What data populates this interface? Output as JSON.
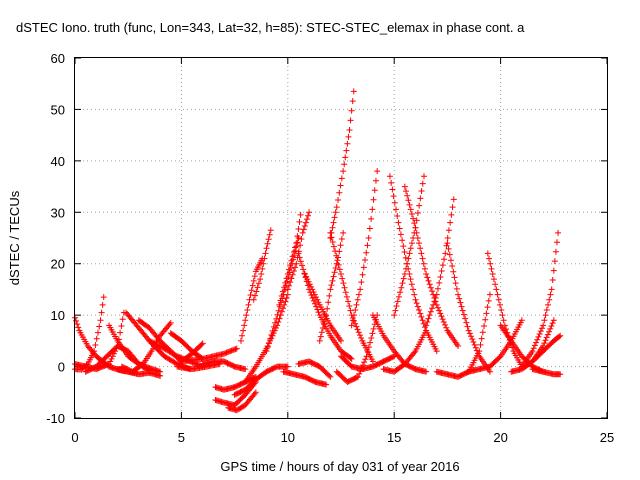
{
  "chart_data": {
    "type": "scatter",
    "title": "dSTEC Iono. truth (func, Lon=343, Lat=32, h=85): STEC-STEC_elemax in phase cont. a",
    "xlabel": "GPS time / hours of day 031 of year 2016",
    "ylabel": "dSTEC  / TECUs",
    "xlim": [
      0,
      25
    ],
    "ylim": [
      -10,
      60
    ],
    "x_ticks": [
      "0",
      "5",
      "10",
      "15",
      "20",
      "25"
    ],
    "y_ticks": [
      "-10",
      "0",
      "10",
      "20",
      "30",
      "40",
      "50",
      "60"
    ],
    "grid": true,
    "legend": "none",
    "marker": "plus",
    "color": "#ff0000",
    "series": [
      {
        "x": [
          0.0,
          0.3,
          0.6,
          0.9,
          1.2,
          1.35
        ],
        "y": [
          -0.5,
          -0.6,
          0.5,
          3.0,
          9.0,
          13.5
        ]
      },
      {
        "x": [
          0.0,
          0.2,
          0.6,
          1.0,
          1.6,
          2.2,
          2.8
        ],
        "y": [
          9.5,
          7.0,
          4.0,
          2.0,
          0.0,
          -0.8,
          -1.2
        ]
      },
      {
        "x": [
          0.0,
          0.5,
          1.0,
          1.6,
          2.0,
          2.3
        ],
        "y": [
          0.5,
          0.0,
          -0.5,
          0.5,
          4.0,
          10.5
        ]
      },
      {
        "x": [
          0.5,
          1.0,
          1.5,
          2.0,
          2.5,
          3.0,
          3.5
        ],
        "y": [
          -1.0,
          0.0,
          2.0,
          4.0,
          3.0,
          0.5,
          -0.8
        ]
      },
      {
        "x": [
          1.6,
          2.0,
          2.5,
          3.0,
          3.5,
          4.0
        ],
        "y": [
          8.0,
          5.0,
          2.0,
          0.5,
          -0.3,
          -1.0
        ]
      },
      {
        "x": [
          2.2,
          2.7,
          3.2,
          3.6,
          4.0,
          4.5
        ],
        "y": [
          0.0,
          -1.0,
          0.5,
          3.0,
          6.0,
          8.5
        ]
      },
      {
        "x": [
          2.4,
          3.0,
          3.6,
          4.2,
          4.8,
          5.4
        ],
        "y": [
          10.5,
          7.5,
          4.5,
          2.0,
          0.5,
          -0.5
        ]
      },
      {
        "x": [
          2.0,
          2.5,
          3.0,
          3.5,
          4.0
        ],
        "y": [
          -0.5,
          -1.0,
          -1.5,
          -1.2,
          -1.8
        ]
      },
      {
        "x": [
          3.0,
          3.5,
          4.0,
          4.5,
          5.0
        ],
        "y": [
          9.0,
          7.5,
          5.0,
          3.0,
          1.0
        ]
      },
      {
        "x": [
          3.5,
          4.2,
          4.8,
          5.4,
          6.0
        ],
        "y": [
          5.0,
          3.5,
          2.0,
          1.0,
          0.0
        ]
      },
      {
        "x": [
          4.5,
          5.0,
          5.5,
          6.0
        ],
        "y": [
          6.5,
          5.0,
          3.0,
          1.5
        ]
      },
      {
        "x": [
          5.0,
          5.5,
          6.0
        ],
        "y": [
          1.0,
          2.5,
          4.5
        ]
      },
      {
        "x": [
          4.8,
          5.5,
          6.2,
          6.8
        ],
        "y": [
          0.0,
          -0.5,
          0.0,
          0.5
        ]
      },
      {
        "x": [
          5.0,
          6.0,
          7.0,
          7.6
        ],
        "y": [
          1.0,
          1.5,
          2.5,
          3.5
        ]
      },
      {
        "x": [
          6.0,
          6.5,
          7.0,
          7.5,
          8.0
        ],
        "y": [
          0.5,
          1.0,
          1.0,
          0.0,
          -0.5
        ]
      },
      {
        "x": [
          7.8,
          8.0,
          8.2,
          8.5,
          8.8
        ],
        "y": [
          5.0,
          9.0,
          13.0,
          18.5,
          21.0
        ]
      },
      {
        "x": [
          8.4,
          8.7,
          9.0,
          9.2
        ],
        "y": [
          13.0,
          17.0,
          23.0,
          26.5
        ]
      },
      {
        "x": [
          6.6,
          7.0,
          7.5,
          8.0,
          8.5
        ],
        "y": [
          -4.0,
          -4.5,
          -4.0,
          -3.0,
          -2.0
        ]
      },
      {
        "x": [
          6.6,
          7.0,
          7.5,
          8.0,
          8.5
        ],
        "y": [
          -6.5,
          -7.0,
          -7.5,
          -5.5,
          -3.0
        ]
      },
      {
        "x": [
          7.2,
          7.6,
          8.0,
          8.5
        ],
        "y": [
          -8.0,
          -8.5,
          -7.5,
          -5.0
        ]
      },
      {
        "x": [
          7.5,
          8.0,
          8.5,
          9.0,
          9.5,
          10.0
        ],
        "y": [
          -5.5,
          -4.5,
          -2.5,
          -1.0,
          0.0,
          0.0
        ]
      },
      {
        "x": [
          8.0,
          8.5,
          9.0,
          9.5,
          10.0
        ],
        "y": [
          -3.0,
          0.0,
          3.5,
          8.0,
          14.0
        ]
      },
      {
        "x": [
          9.0,
          9.4,
          9.8,
          10.2,
          10.5
        ],
        "y": [
          3.0,
          8.5,
          14.0,
          20.0,
          25.0
        ]
      },
      {
        "x": [
          9.6,
          10.0,
          10.4,
          10.6
        ],
        "y": [
          12.0,
          18.0,
          24.0,
          29.5
        ]
      },
      {
        "x": [
          10.0,
          10.4,
          10.7,
          11.0
        ],
        "y": [
          15.0,
          20.0,
          26.0,
          30.0
        ]
      },
      {
        "x": [
          9.8,
          10.3,
          10.8,
          11.3,
          11.8
        ],
        "y": [
          -1.0,
          -1.5,
          -2.0,
          -3.0,
          -3.5
        ]
      },
      {
        "x": [
          10.5,
          11.0,
          11.5,
          12.0
        ],
        "y": [
          0.5,
          1.0,
          0.0,
          -2.0
        ]
      },
      {
        "x": [
          10.5,
          11.0,
          11.5,
          12.0,
          12.5,
          13.0
        ],
        "y": [
          22.0,
          15.0,
          10.0,
          6.0,
          3.0,
          1.5
        ]
      },
      {
        "x": [
          10.8,
          11.5,
          12.0,
          12.5
        ],
        "y": [
          18.0,
          12.0,
          8.0,
          5.0
        ]
      },
      {
        "x": [
          11.5,
          11.8,
          12.0,
          12.3,
          12.6
        ],
        "y": [
          5.0,
          10.0,
          15.0,
          20.0,
          26.0
        ]
      },
      {
        "x": [
          12.0,
          12.3,
          12.6,
          12.9,
          13.1
        ],
        "y": [
          25.0,
          31.0,
          38.0,
          46.0,
          53.5
        ]
      },
      {
        "x": [
          12.0,
          12.5,
          13.0,
          13.5,
          14.0
        ],
        "y": [
          26.0,
          18.0,
          10.0,
          5.0,
          1.0
        ]
      },
      {
        "x": [
          12.3,
          12.8,
          13.3,
          13.7,
          14.2
        ],
        "y": [
          -1.0,
          -3.0,
          -2.0,
          2.0,
          10.0
        ]
      },
      {
        "x": [
          13.0,
          13.4,
          13.8,
          14.2
        ],
        "y": [
          8.0,
          15.0,
          25.0,
          38.0
        ]
      },
      {
        "x": [
          12.5,
          13.0,
          13.5,
          14.0,
          14.5,
          15.0
        ],
        "y": [
          2.0,
          0.0,
          -0.5,
          0.0,
          1.0,
          2.0
        ]
      },
      {
        "x": [
          14.0,
          14.5,
          15.0,
          15.5,
          16.0,
          16.5
        ],
        "y": [
          10.0,
          6.0,
          3.0,
          0.5,
          -0.5,
          -1.0
        ]
      },
      {
        "x": [
          14.8,
          15.2,
          15.6,
          16.0,
          16.5,
          17.0
        ],
        "y": [
          37.0,
          28.0,
          20.0,
          13.0,
          7.0,
          3.0
        ]
      },
      {
        "x": [
          15.0,
          15.5,
          16.0,
          16.4
        ],
        "y": [
          10.0,
          18.0,
          27.0,
          37.0
        ]
      },
      {
        "x": [
          15.5,
          16.0,
          16.5,
          17.0,
          17.5,
          18.0
        ],
        "y": [
          35.0,
          27.0,
          18.0,
          12.0,
          7.0,
          4.0
        ]
      },
      {
        "x": [
          14.5,
          15.0,
          15.5,
          16.0,
          16.5
        ],
        "y": [
          -0.5,
          -1.0,
          0.5,
          3.0,
          7.0
        ]
      },
      {
        "x": [
          16.5,
          17.0,
          17.4,
          17.8
        ],
        "y": [
          8.0,
          14.0,
          22.0,
          32.5
        ]
      },
      {
        "x": [
          17.5,
          18.0,
          18.5,
          19.0,
          19.5
        ],
        "y": [
          24.0,
          14.0,
          7.0,
          2.0,
          -1.0
        ]
      },
      {
        "x": [
          17.0,
          17.5,
          18.0,
          18.5,
          19.0,
          19.5
        ],
        "y": [
          -1.0,
          -1.5,
          -2.0,
          -1.0,
          3.0,
          14.0
        ]
      },
      {
        "x": [
          19.4,
          19.8,
          20.2,
          20.6,
          21.0
        ],
        "y": [
          22.0,
          15.0,
          8.0,
          3.0,
          0.0
        ]
      },
      {
        "x": [
          18.5,
          19.0,
          19.5,
          20.0,
          20.5,
          21.0
        ],
        "y": [
          -1.0,
          -0.5,
          0.0,
          2.0,
          5.0,
          9.0
        ]
      },
      {
        "x": [
          20.0,
          20.5,
          21.0,
          21.5,
          22.0
        ],
        "y": [
          8.0,
          5.0,
          2.0,
          0.0,
          -1.0
        ]
      },
      {
        "x": [
          20.5,
          21.0,
          21.5,
          22.0,
          22.5
        ],
        "y": [
          -1.0,
          -0.5,
          1.0,
          4.0,
          9.0
        ]
      },
      {
        "x": [
          21.0,
          21.5,
          22.0,
          22.4,
          22.7
        ],
        "y": [
          0.0,
          3.0,
          8.0,
          15.0,
          26.0
        ]
      },
      {
        "x": [
          21.5,
          22.0,
          22.5,
          22.8
        ],
        "y": [
          1.0,
          3.0,
          5.0,
          6.0
        ]
      },
      {
        "x": [
          21.5,
          22.0,
          22.5,
          22.8
        ],
        "y": [
          -0.5,
          -1.0,
          -1.5,
          -1.5
        ]
      }
    ]
  }
}
